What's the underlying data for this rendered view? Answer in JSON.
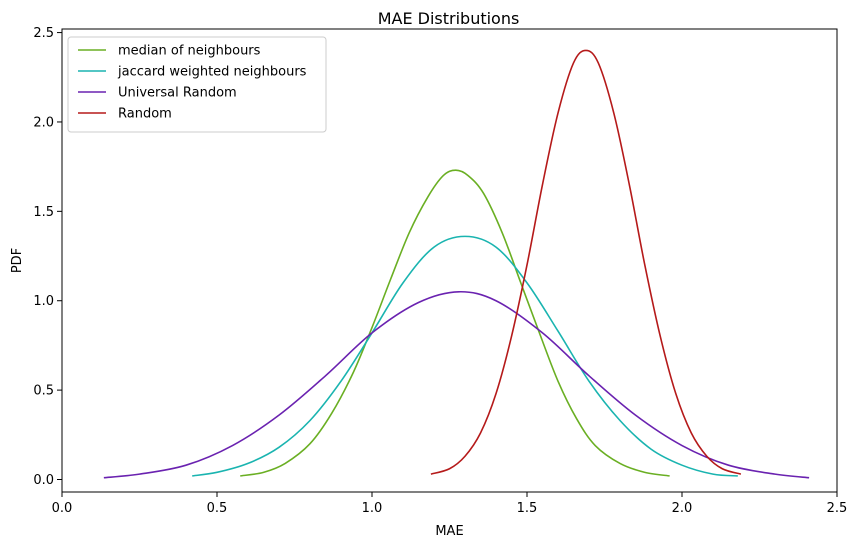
{
  "chart_data": {
    "type": "line",
    "title": "MAE Distributions",
    "xlabel": "MAE",
    "ylabel": "PDF",
    "xlim": [
      0.0,
      2.5
    ],
    "ylim": [
      -0.07,
      2.52
    ],
    "xticks": [
      "0.0",
      "0.5",
      "1.0",
      "1.5",
      "2.0",
      "2.5"
    ],
    "yticks": [
      "0.0",
      "0.5",
      "1.0",
      "1.5",
      "2.0",
      "2.5"
    ],
    "grid": false,
    "legend_position": "top-left",
    "series": [
      {
        "name": "median of neighbours",
        "color": "#6aaf23",
        "x": [
          0.575,
          0.65,
          0.72,
          0.8,
          0.87,
          0.94,
          1.0,
          1.06,
          1.12,
          1.18,
          1.23,
          1.27,
          1.31,
          1.36,
          1.42,
          1.48,
          1.54,
          1.6,
          1.66,
          1.72,
          1.8,
          1.88,
          1.96
        ],
        "y": [
          0.02,
          0.04,
          0.09,
          0.2,
          0.37,
          0.6,
          0.85,
          1.12,
          1.38,
          1.58,
          1.7,
          1.73,
          1.7,
          1.6,
          1.38,
          1.1,
          0.82,
          0.55,
          0.34,
          0.19,
          0.09,
          0.04,
          0.02
        ]
      },
      {
        "name": "jaccard weighted neighbours",
        "color": "#1ab4b0",
        "x": [
          0.42,
          0.5,
          0.6,
          0.7,
          0.8,
          0.9,
          1.0,
          1.1,
          1.2,
          1.3,
          1.4,
          1.5,
          1.6,
          1.7,
          1.8,
          1.9,
          2.0,
          2.1,
          2.18
        ],
        "y": [
          0.02,
          0.04,
          0.09,
          0.18,
          0.33,
          0.55,
          0.82,
          1.1,
          1.3,
          1.36,
          1.3,
          1.1,
          0.83,
          0.55,
          0.33,
          0.17,
          0.08,
          0.03,
          0.02
        ]
      },
      {
        "name": "Universal Random",
        "color": "#6a22b0",
        "x": [
          0.135,
          0.25,
          0.4,
          0.55,
          0.7,
          0.85,
          1.0,
          1.15,
          1.28,
          1.4,
          1.55,
          1.7,
          1.85,
          2.0,
          2.15,
          2.3,
          2.41
        ],
        "y": [
          0.01,
          0.03,
          0.08,
          0.19,
          0.36,
          0.58,
          0.82,
          0.99,
          1.05,
          1.0,
          0.82,
          0.58,
          0.36,
          0.19,
          0.08,
          0.03,
          0.01
        ]
      },
      {
        "name": "Random",
        "color": "#b51a1a",
        "x": [
          1.19,
          1.25,
          1.3,
          1.35,
          1.4,
          1.45,
          1.5,
          1.55,
          1.6,
          1.65,
          1.69,
          1.73,
          1.78,
          1.83,
          1.88,
          1.93,
          1.98,
          2.03,
          2.08,
          2.13,
          2.19
        ],
        "y": [
          0.03,
          0.06,
          0.13,
          0.26,
          0.48,
          0.8,
          1.2,
          1.65,
          2.05,
          2.33,
          2.4,
          2.33,
          2.05,
          1.65,
          1.2,
          0.8,
          0.48,
          0.26,
          0.13,
          0.06,
          0.03
        ]
      }
    ]
  }
}
